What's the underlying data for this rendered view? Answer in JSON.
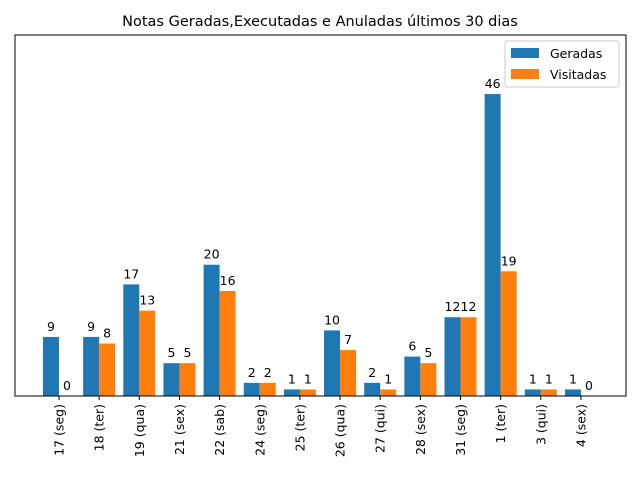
{
  "chart_data": {
    "type": "bar",
    "title": "Notas Geradas,Executadas e Anuladas últimos 30 dias",
    "xlabel": "",
    "ylabel": "",
    "categories": [
      "17 (seg)",
      "18 (ter)",
      "19 (qua)",
      "21 (sex)",
      "22 (sab)",
      "24 (seg)",
      "25 (ter)",
      "26 (qua)",
      "27 (qui)",
      "28 (sex)",
      "31 (seg)",
      "1 (ter)",
      "3 (qui)",
      "4 (sex)"
    ],
    "series": [
      {
        "name": "Geradas",
        "color": "#1f77b4",
        "values": [
          9,
          9,
          17,
          5,
          20,
          2,
          1,
          10,
          2,
          6,
          12,
          46,
          1,
          1
        ]
      },
      {
        "name": "Visitadas",
        "color": "#ff7f0e",
        "values": [
          0,
          8,
          13,
          5,
          16,
          2,
          1,
          7,
          1,
          5,
          12,
          19,
          1,
          0
        ]
      }
    ],
    "ylim": [
      0,
      55
    ],
    "grid": false,
    "legend_position": "top-right",
    "y_ticks_shown": false,
    "x_tick_rotation": 90
  }
}
